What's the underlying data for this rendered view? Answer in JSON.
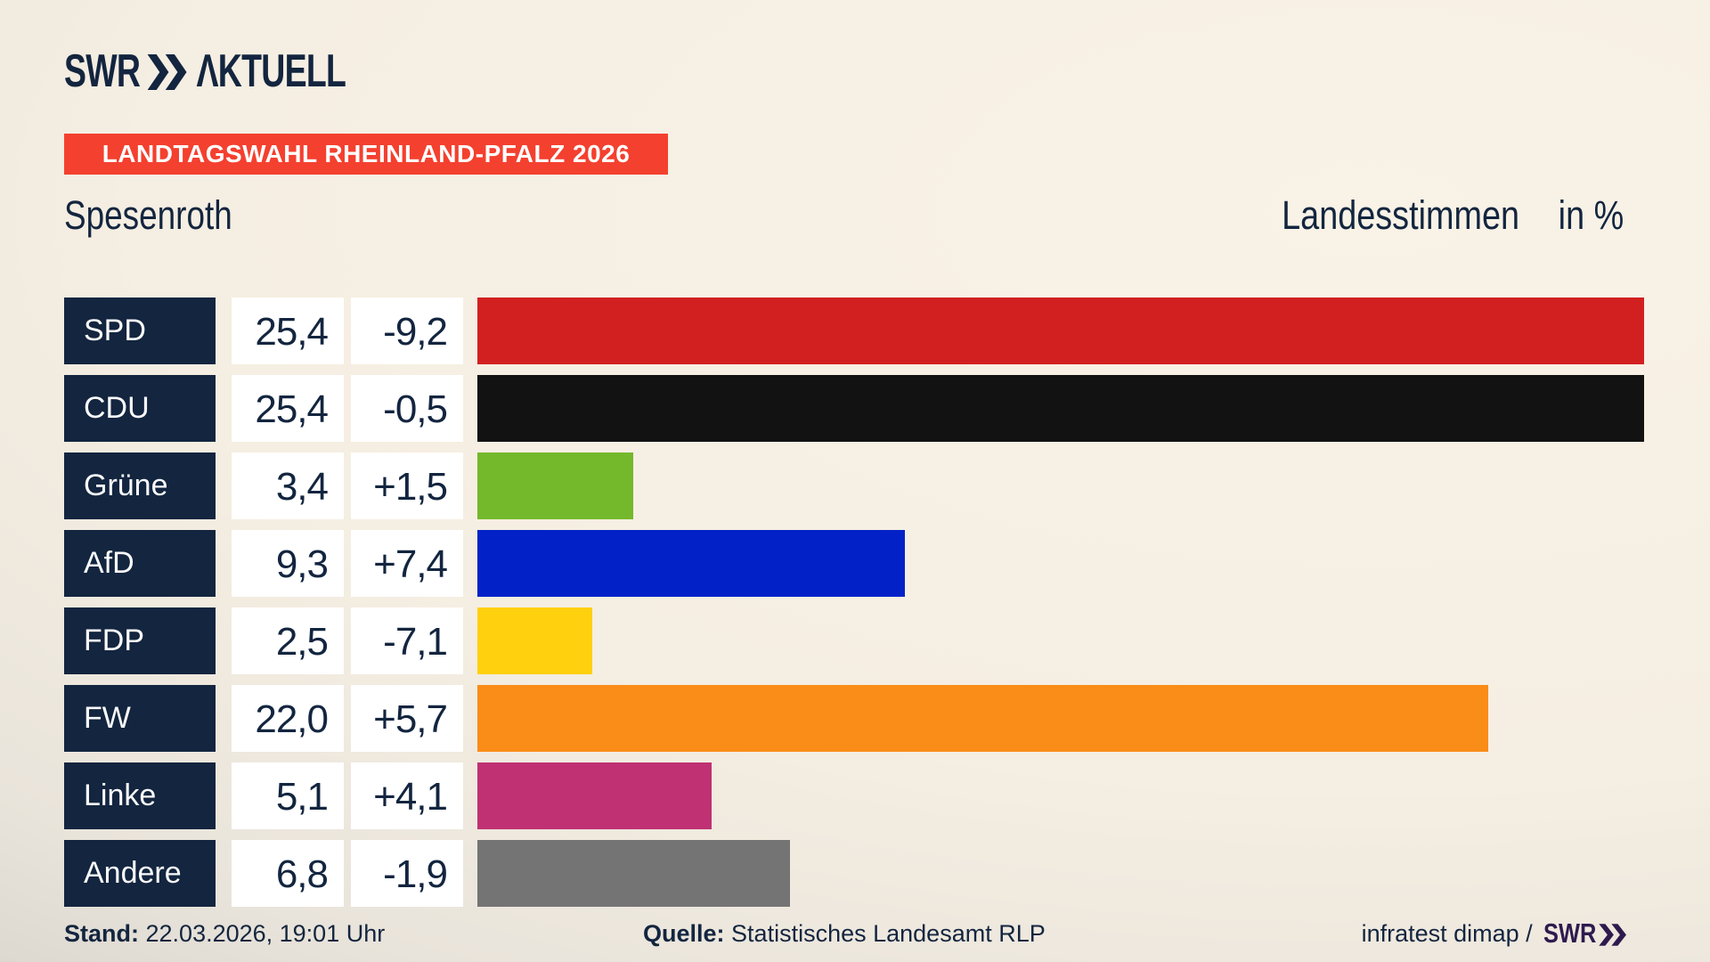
{
  "brand": {
    "swr_wordmark": "SWR",
    "aktuell_wordmark": "ΛKTUELL"
  },
  "banner": {
    "text": "LANDTAGSWAHL RHEINLAND-PFALZ 2026",
    "bg_color": "#f4402f",
    "text_color": "#ffffff"
  },
  "header": {
    "title": "Spesenroth",
    "right_label": "Landesstimmen",
    "unit_label": "in %"
  },
  "chart_data": {
    "type": "bar",
    "orientation": "horizontal",
    "title": "Landtagswahl Rheinland-Pfalz 2026 – Spesenroth, Landesstimmen in %",
    "categories": [
      "SPD",
      "CDU",
      "Grüne",
      "AfD",
      "FDP",
      "FW",
      "Linke",
      "Andere"
    ],
    "values": [
      25.4,
      25.4,
      3.4,
      9.3,
      2.5,
      22.0,
      5.1,
      6.8
    ],
    "changes": [
      -9.2,
      -0.5,
      1.5,
      7.4,
      -7.1,
      5.7,
      4.1,
      -1.9
    ],
    "value_labels": [
      "25,4",
      "25,4",
      "3,4",
      "9,3",
      "2,5",
      "22,0",
      "5,1",
      "6,8"
    ],
    "change_labels": [
      "-9,2",
      "-0,5",
      "+1,5",
      "+7,4",
      "-7,1",
      "+5,7",
      "+4,1",
      "-1,9"
    ],
    "bar_colors": [
      "#d22020",
      "#121212",
      "#74b82b",
      "#0222c8",
      "#ffd00d",
      "#fa8c18",
      "#bf3173",
      "#747474"
    ],
    "xlim": [
      0,
      25.4
    ],
    "grid": false,
    "legend": false,
    "unit": "%"
  },
  "footer": {
    "stand_label": "Stand:",
    "stand_value": "22.03.2026, 19:01 Uhr",
    "quelle_label": "Quelle:",
    "quelle_value": "Statistisches Landesamt RLP",
    "credit_text": "infratest dimap /",
    "credit_logo": "SWR"
  },
  "colors": {
    "navy": "#13253f",
    "background_cream": "#f5eee2",
    "background_edge_gray": "#c7c4bd",
    "white_box": "#ffffff",
    "swr_footer_purple": "#2e1a4e"
  }
}
